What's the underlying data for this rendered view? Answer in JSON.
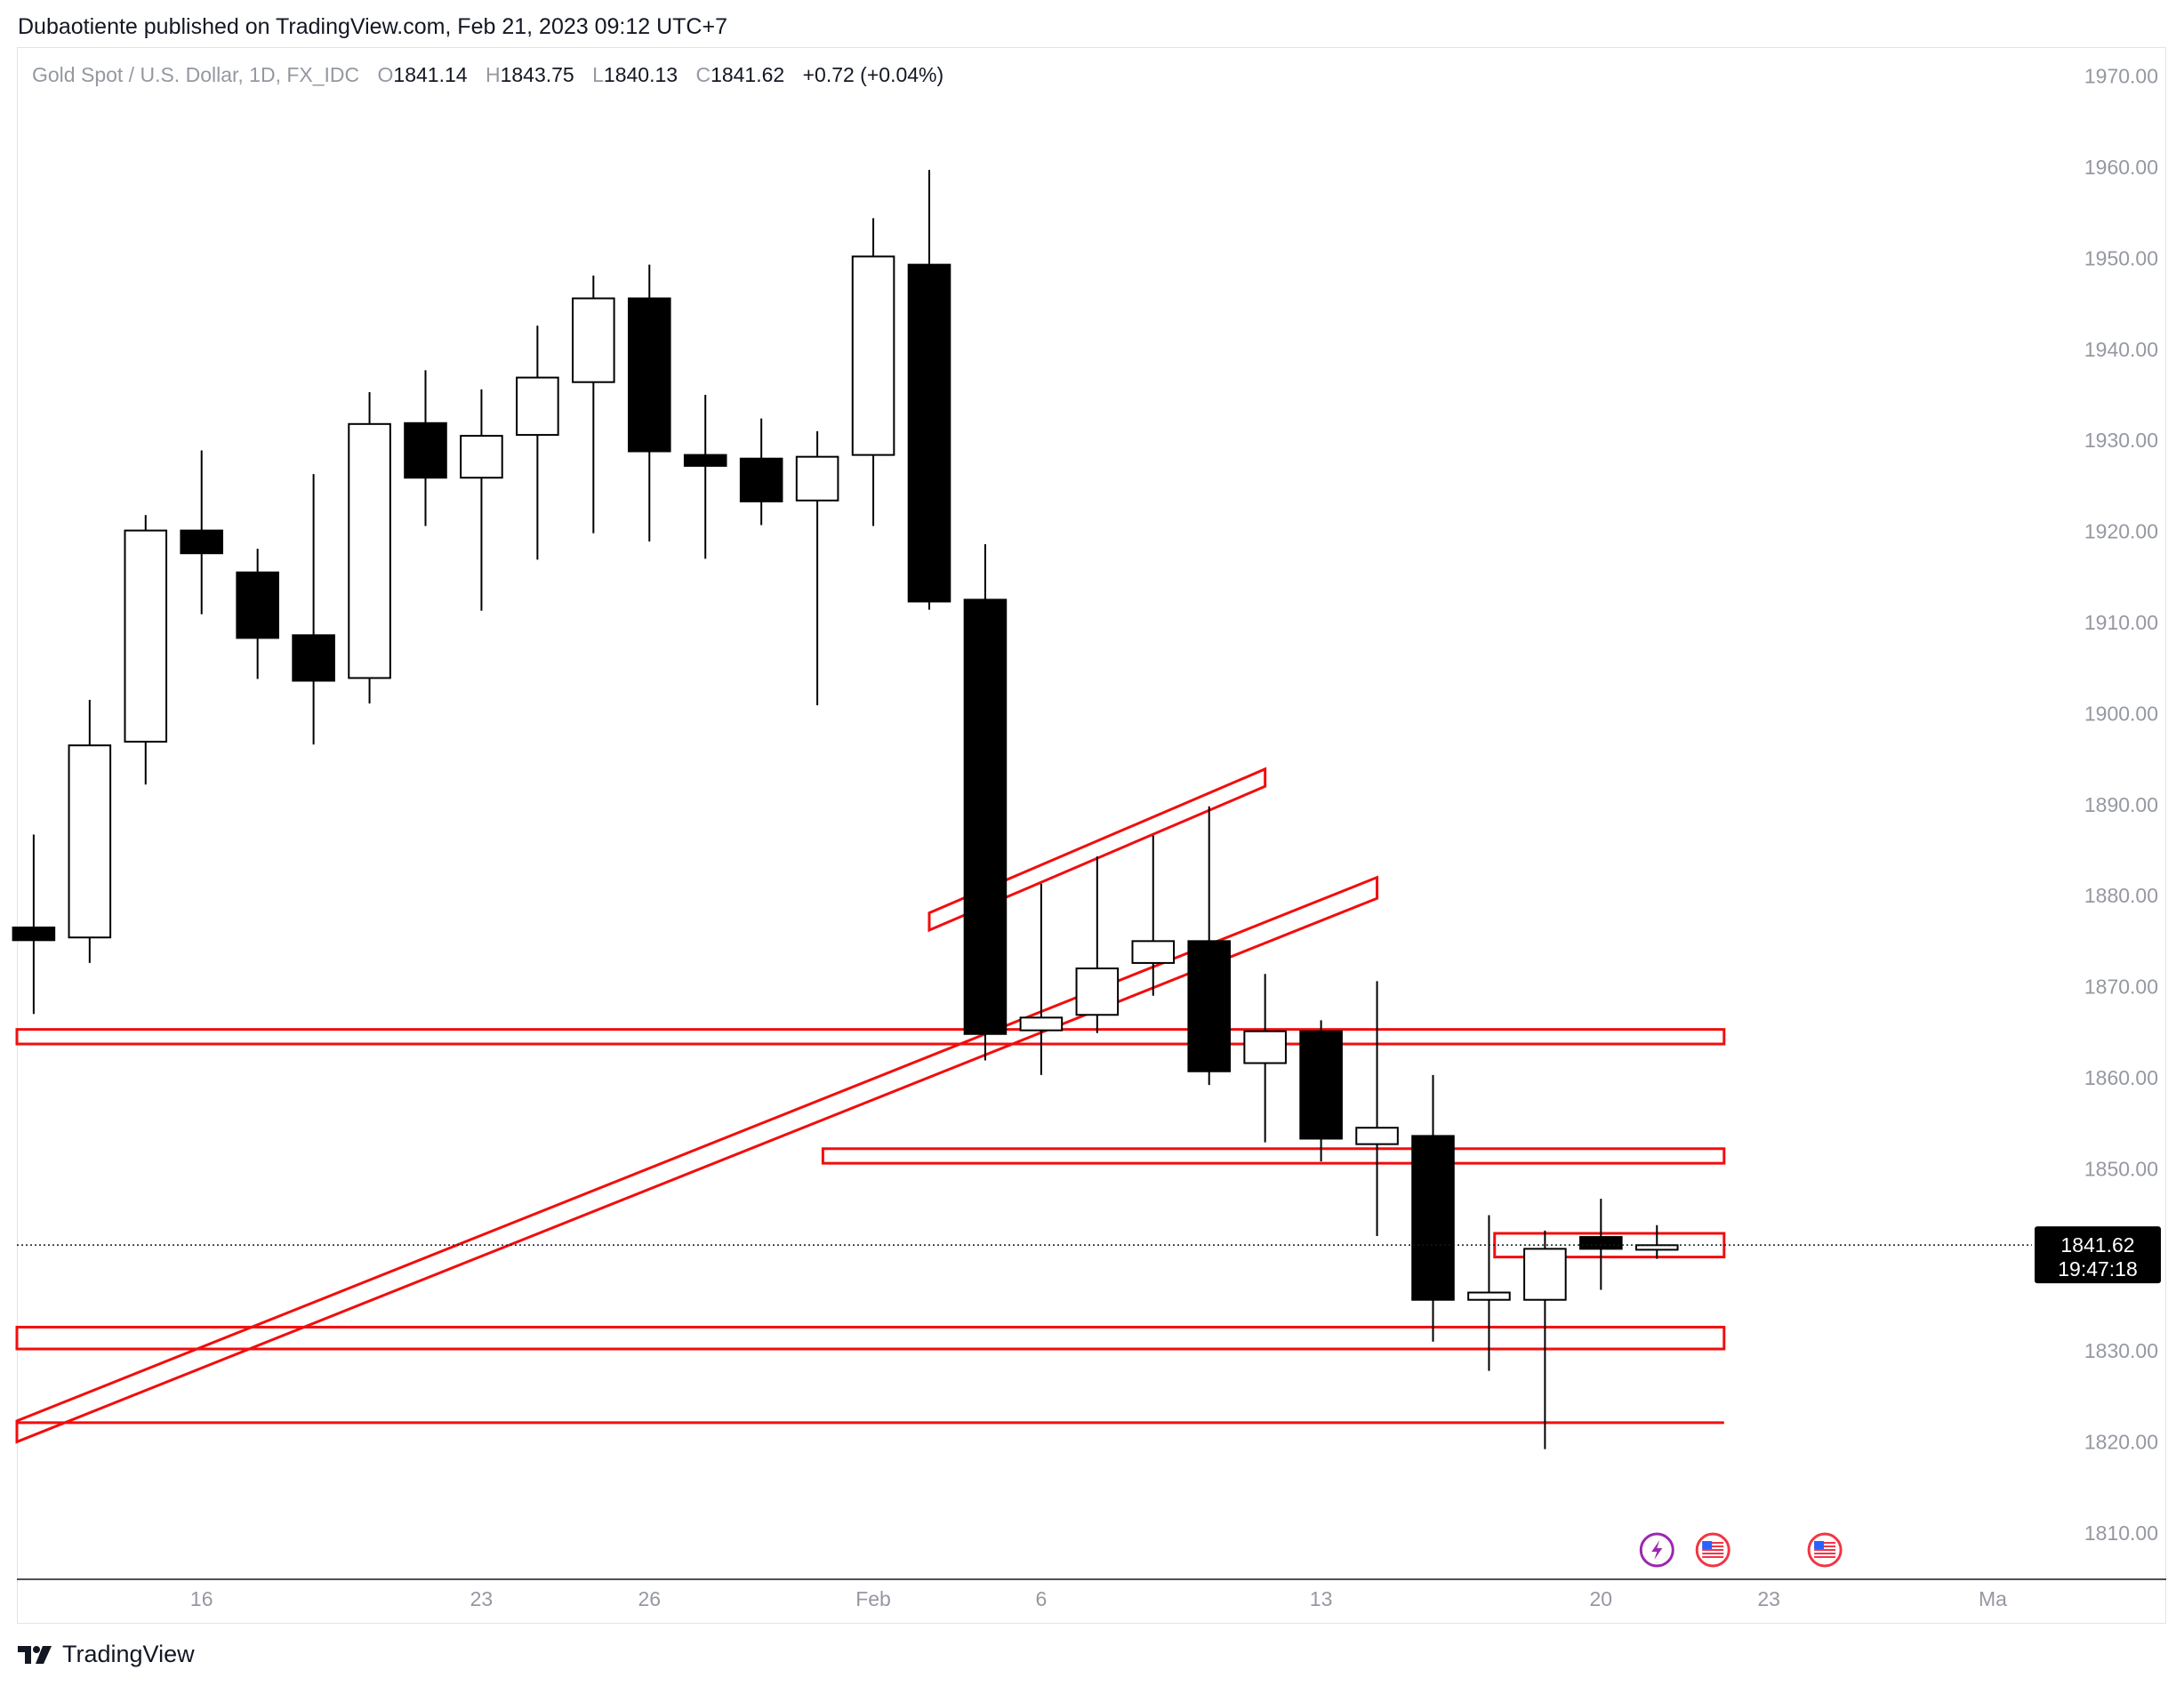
{
  "publisher": "Dubaotiente published on TradingView.com, Feb 21, 2023 09:12 UTC+7",
  "header": {
    "symbol": "Gold Spot / U.S. Dollar, 1D, FX_IDC",
    "o_label": "O",
    "o_value": "1841.14",
    "h_label": "H",
    "h_value": "1843.75",
    "l_label": "L",
    "l_value": "1840.13",
    "c_label": "C",
    "c_value": "1841.62",
    "change": "+0.72 (+0.04%)"
  },
  "price_tag": {
    "price": "1841.62",
    "countdown": "19:47:18"
  },
  "brand": "TradingView",
  "colors": {
    "up_fill": "#ffffff",
    "down_fill": "#000000",
    "wick": "#000000",
    "drawing": "#f20d0d",
    "axis_text": "#9598a1"
  },
  "chart_data": {
    "type": "candlestick",
    "symbol": "Gold Spot / U.S. Dollar",
    "interval": "1D",
    "ylim": [
      1805,
      1973
    ],
    "xlim": [
      -0.3,
      35.7
    ],
    "y_ticks": [
      "1970.00",
      "1960.00",
      "1950.00",
      "1940.00",
      "1930.00",
      "1920.00",
      "1910.00",
      "1900.00",
      "1890.00",
      "1880.00",
      "1870.00",
      "1860.00",
      "1850.00",
      "1840.00",
      "1830.00",
      "1820.00",
      "1810.00"
    ],
    "x_ticks": [
      {
        "label": "16",
        "index": 3
      },
      {
        "label": "23",
        "index": 8
      },
      {
        "label": "26",
        "index": 11
      },
      {
        "label": "Feb",
        "index": 15
      },
      {
        "label": "6",
        "index": 18
      },
      {
        "label": "13",
        "index": 23
      },
      {
        "label": "20",
        "index": 28
      },
      {
        "label": "23",
        "index": 31
      },
      {
        "label": "Ma",
        "index": 35
      }
    ],
    "last_price": 1841.62,
    "candles": [
      {
        "o": 1876.5,
        "h": 1886.7,
        "l": 1867.0,
        "c": 1875.1
      },
      {
        "o": 1875.4,
        "h": 1901.5,
        "l": 1872.6,
        "c": 1896.5
      },
      {
        "o": 1896.9,
        "h": 1921.8,
        "l": 1892.2,
        "c": 1920.1
      },
      {
        "o": 1920.1,
        "h": 1928.9,
        "l": 1910.9,
        "c": 1917.6
      },
      {
        "o": 1915.5,
        "h": 1918.1,
        "l": 1903.8,
        "c": 1908.3
      },
      {
        "o": 1908.6,
        "h": 1926.3,
        "l": 1896.6,
        "c": 1903.6
      },
      {
        "o": 1903.9,
        "h": 1935.3,
        "l": 1901.1,
        "c": 1931.8
      },
      {
        "o": 1931.9,
        "h": 1937.7,
        "l": 1920.6,
        "c": 1925.9
      },
      {
        "o": 1925.9,
        "h": 1935.6,
        "l": 1911.3,
        "c": 1930.5
      },
      {
        "o": 1930.6,
        "h": 1942.6,
        "l": 1916.9,
        "c": 1936.9
      },
      {
        "o": 1936.4,
        "h": 1948.1,
        "l": 1919.8,
        "c": 1945.6
      },
      {
        "o": 1945.6,
        "h": 1949.3,
        "l": 1918.9,
        "c": 1928.8
      },
      {
        "o": 1928.4,
        "h": 1935.0,
        "l": 1917.0,
        "c": 1927.2
      },
      {
        "o": 1928.0,
        "h": 1932.4,
        "l": 1920.7,
        "c": 1923.3
      },
      {
        "o": 1923.4,
        "h": 1931.0,
        "l": 1900.9,
        "c": 1928.2
      },
      {
        "o": 1928.4,
        "h": 1954.4,
        "l": 1920.6,
        "c": 1950.2
      },
      {
        "o": 1949.3,
        "h": 1959.7,
        "l": 1911.4,
        "c": 1912.3
      },
      {
        "o": 1912.5,
        "h": 1918.6,
        "l": 1861.9,
        "c": 1864.8
      },
      {
        "o": 1865.2,
        "h": 1881.3,
        "l": 1860.3,
        "c": 1866.6
      },
      {
        "o": 1866.9,
        "h": 1884.3,
        "l": 1864.9,
        "c": 1872.0
      },
      {
        "o": 1872.6,
        "h": 1886.6,
        "l": 1869.0,
        "c": 1875.0
      },
      {
        "o": 1875.0,
        "h": 1889.8,
        "l": 1859.2,
        "c": 1860.7
      },
      {
        "o": 1861.6,
        "h": 1871.4,
        "l": 1852.9,
        "c": 1865.1
      },
      {
        "o": 1865.1,
        "h": 1866.3,
        "l": 1850.8,
        "c": 1853.3
      },
      {
        "o": 1852.7,
        "h": 1870.6,
        "l": 1842.6,
        "c": 1854.5
      },
      {
        "o": 1853.6,
        "h": 1860.3,
        "l": 1831.0,
        "c": 1835.6
      },
      {
        "o": 1835.6,
        "h": 1844.9,
        "l": 1827.8,
        "c": 1836.4
      },
      {
        "o": 1835.6,
        "h": 1843.2,
        "l": 1819.2,
        "c": 1841.2
      },
      {
        "o": 1842.5,
        "h": 1846.7,
        "l": 1836.7,
        "c": 1841.2
      },
      {
        "o": 1841.1,
        "h": 1843.8,
        "l": 1840.1,
        "c": 1841.6
      }
    ],
    "drawings": [
      {
        "kind": "band",
        "x1": -0.3,
        "x2": 30.2,
        "y_low": 1863.7,
        "y_high": 1865.3
      },
      {
        "kind": "band",
        "x1": 14.1,
        "x2": 30.2,
        "y_low": 1850.6,
        "y_high": 1852.2
      },
      {
        "kind": "band",
        "x1": 26.1,
        "x2": 30.2,
        "y_low": 1840.3,
        "y_high": 1842.9
      },
      {
        "kind": "band",
        "x1": -0.3,
        "x2": 30.2,
        "y_low": 1830.2,
        "y_high": 1832.6
      },
      {
        "kind": "line",
        "x1": -0.3,
        "x2": 30.2,
        "y": 1822.1
      },
      {
        "kind": "channel",
        "x1": -0.3,
        "y1": 1820.0,
        "x2": 24.0,
        "y2": 1879.7,
        "offset": 2.3
      },
      {
        "kind": "channel",
        "x1": 16.0,
        "y1": 1876.2,
        "x2": 22.0,
        "y2": 1892.0,
        "offset": 1.9
      }
    ],
    "events": [
      {
        "icon": "lightning-event-icon",
        "index": 29
      },
      {
        "icon": "us-flag-event-icon",
        "index": 30
      },
      {
        "icon": "us-flag-event-icon",
        "index": 32
      }
    ]
  }
}
